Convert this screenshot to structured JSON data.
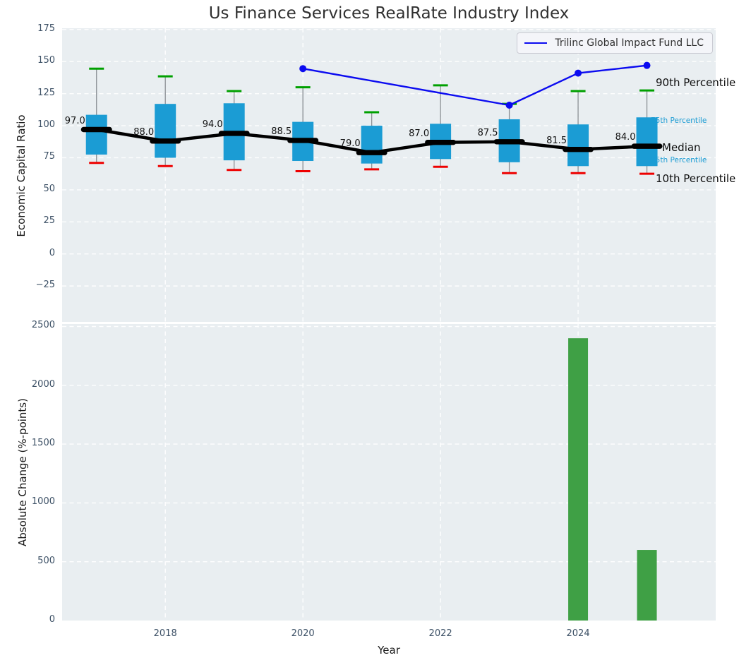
{
  "figure": {
    "title": "Us Finance Services RealRate Industry Index",
    "legend": {
      "label": "Trilinc Global Impact Fund LLC",
      "line_color": "#0b0bf0"
    }
  },
  "annotations": {
    "p90": "90th Percentile",
    "p75": "75th Percentile",
    "median": "Median",
    "p25": "25th Percentile",
    "p10": "10th Percentile"
  },
  "chart_data": [
    {
      "type": "boxplot+line",
      "ylabel": "Economic Capital Ratio",
      "ylim": [
        -53,
        176
      ],
      "yticks": [
        -25,
        0,
        25,
        50,
        75,
        100,
        125,
        150,
        175
      ],
      "xlim": [
        2016.5,
        2026.0
      ],
      "xticks": [
        2018,
        2020,
        2022,
        2024
      ],
      "grid": true,
      "colors": {
        "box": "#1b9cd4",
        "cap_high": "#00a000",
        "cap_low": "#ee0000",
        "whisker": "#8a8f94",
        "median": "#000000"
      },
      "boxes": [
        {
          "year": 2017,
          "p10": 71.0,
          "q1": 77.5,
          "median": 97.0,
          "q3": 108.5,
          "p90": 144.5
        },
        {
          "year": 2018,
          "p10": 68.5,
          "q1": 75.0,
          "median": 88.0,
          "q3": 117.0,
          "p90": 138.5
        },
        {
          "year": 2019,
          "p10": 65.5,
          "q1": 73.0,
          "median": 94.0,
          "q3": 117.5,
          "p90": 127.0
        },
        {
          "year": 2020,
          "p10": 64.5,
          "q1": 72.5,
          "median": 88.5,
          "q3": 103.0,
          "p90": 130.0
        },
        {
          "year": 2021,
          "p10": 66.0,
          "q1": 70.5,
          "median": 79.0,
          "q3": 100.0,
          "p90": 110.5
        },
        {
          "year": 2022,
          "p10": 68.0,
          "q1": 74.0,
          "median": 87.0,
          "q3": 101.5,
          "p90": 131.5
        },
        {
          "year": 2023,
          "p10": 63.0,
          "q1": 71.5,
          "median": 87.5,
          "q3": 105.0,
          "p90": 117.0
        },
        {
          "year": 2024,
          "p10": 63.0,
          "q1": 68.5,
          "median": 81.5,
          "q3": 101.0,
          "p90": 127.0
        },
        {
          "year": 2025,
          "p10": 62.5,
          "q1": 68.5,
          "median": 84.0,
          "q3": 106.5,
          "p90": 127.5
        }
      ],
      "series": [
        {
          "name": "Trilinc Global Impact Fund LLC",
          "color": "#0b0bf0",
          "x": [
            2020,
            2023,
            2024,
            2025
          ],
          "y": [
            144.5,
            116.0,
            141.0,
            147.0
          ]
        }
      ]
    },
    {
      "type": "bar",
      "ylabel": "Absolute Change (%-points)",
      "xlabel": "Year",
      "ylim": [
        0,
        2521
      ],
      "yticks": [
        0,
        500,
        1000,
        1500,
        2000,
        2500
      ],
      "xlim": [
        2016.5,
        2026.0
      ],
      "xticks": [
        2018,
        2020,
        2022,
        2024
      ],
      "grid": true,
      "bar_color": "#3fa045",
      "bars": [
        {
          "year": 2024,
          "value": 2400
        },
        {
          "year": 2025,
          "value": 600
        }
      ]
    }
  ]
}
